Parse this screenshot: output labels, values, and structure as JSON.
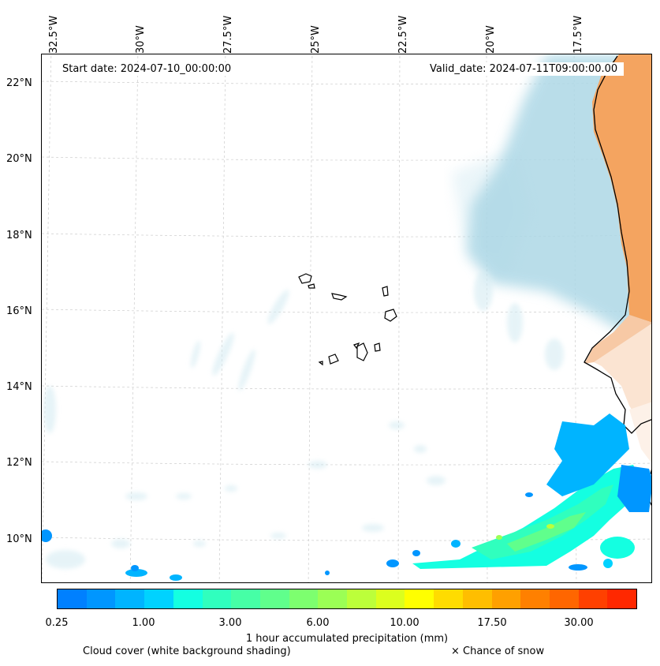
{
  "map": {
    "start_date": "Start date: 2024-07-10_00:00:00",
    "valid_date": "Valid_date: 2024-07-11T09:00:00.00",
    "lon_labels": [
      "32.5°W",
      "30°W",
      "27.5°W",
      "25°W",
      "22.5°W",
      "20°W",
      "17.5°W"
    ],
    "lat_labels": [
      "22°N",
      "20°N",
      "18°N",
      "16°N",
      "14°N",
      "12°N",
      "10°N"
    ],
    "colors": {
      "land": "#f4a460",
      "ocean_cloud": "#add8e6",
      "coastline": "#000000"
    }
  },
  "colorbar": {
    "colors": [
      "#0080ff",
      "#0096ff",
      "#00b4ff",
      "#00d2ff",
      "#14ffe1",
      "#30ffbe",
      "#46ffa6",
      "#60ff8c",
      "#7dff6f",
      "#9bff55",
      "#bcff3a",
      "#dcff1e",
      "#ffff00",
      "#ffdc00",
      "#ffbe00",
      "#ffa000",
      "#ff8000",
      "#ff6600",
      "#ff4000",
      "#ff2800"
    ],
    "tick_labels": [
      "0.25",
      "1.00",
      "3.00",
      "6.00",
      "10.00",
      "17.50",
      "30.00"
    ],
    "label": "1 hour accumulated precipitation (mm)"
  },
  "legend": {
    "cloud_note": "Cloud cover (white background shading)",
    "snow_note": "× Chance of snow"
  }
}
